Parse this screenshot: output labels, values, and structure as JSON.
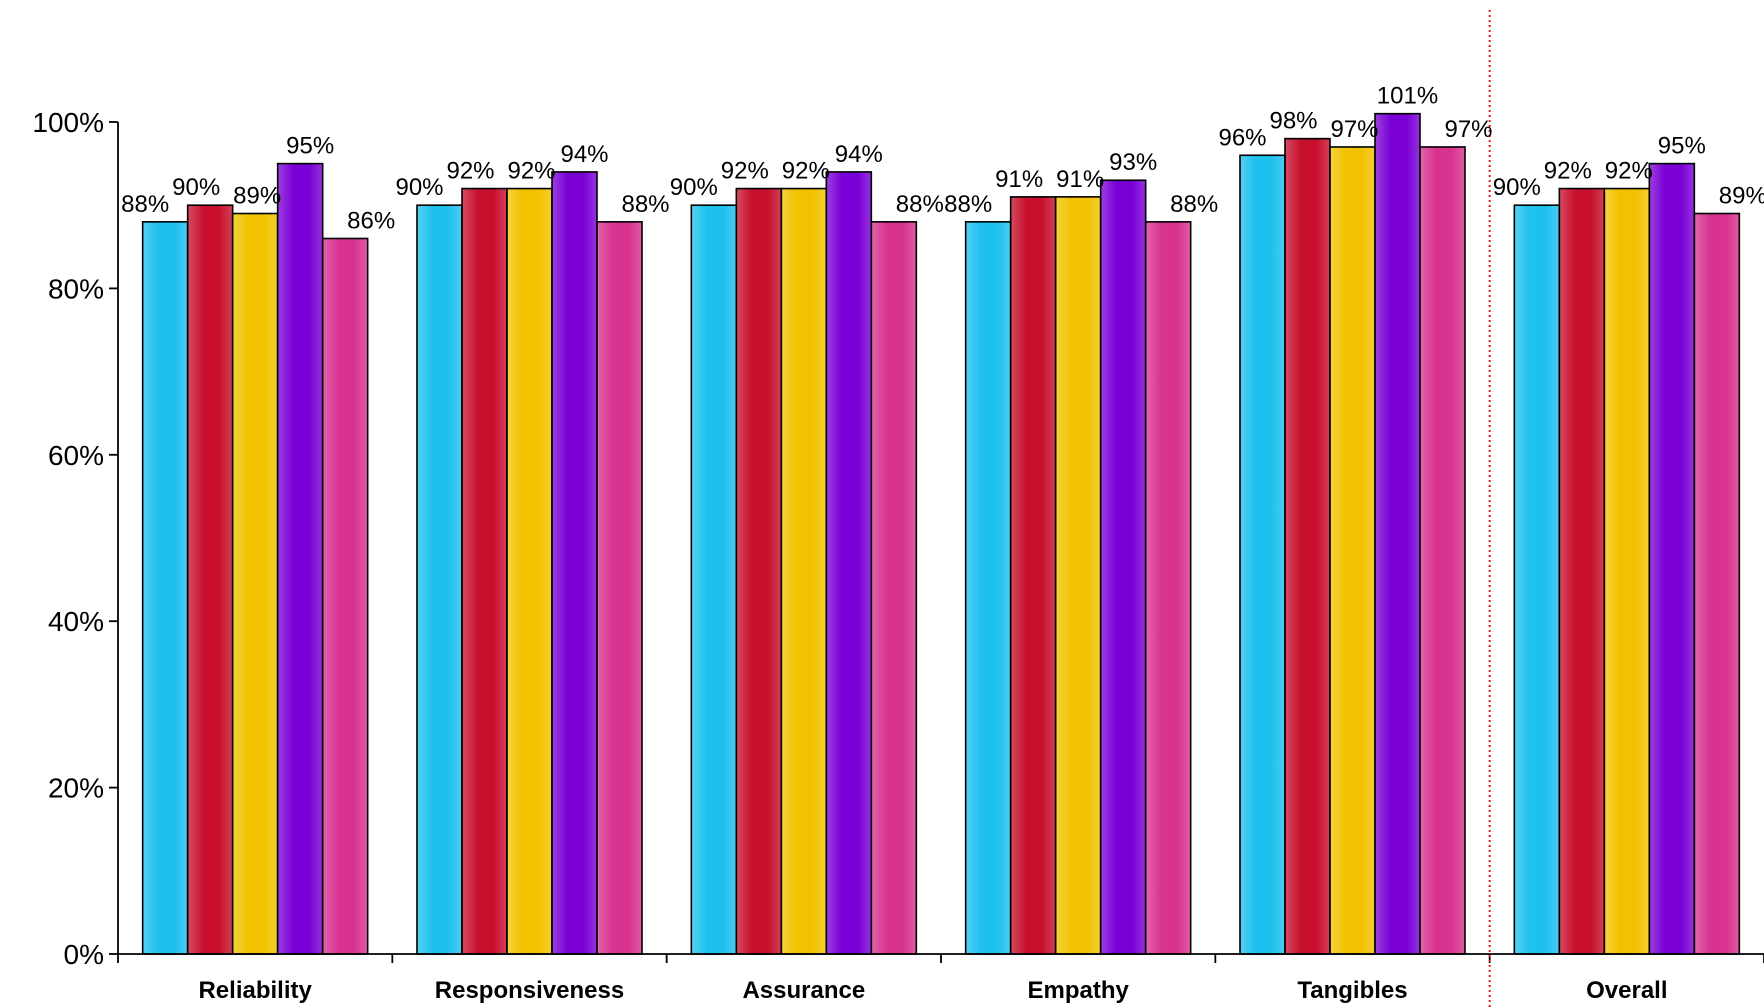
{
  "chart_data": {
    "type": "bar",
    "title": "",
    "xlabel": "",
    "ylabel": "",
    "ylim": [
      0,
      1.0
    ],
    "y_ticks": [
      "0%",
      "20%",
      "40%",
      "60%",
      "80%",
      "100%"
    ],
    "y_tick_values": [
      0,
      0.2,
      0.4,
      0.6,
      0.8,
      1.0
    ],
    "categories": [
      "Reliability",
      "Responsiveness",
      "Assurance",
      "Empathy",
      "Tangibles",
      "Overall"
    ],
    "series": [
      {
        "color": "#1EC0EE",
        "values": [
          0.88,
          0.9,
          0.9,
          0.88,
          0.96,
          0.9
        ],
        "labels": [
          "88%",
          "90%",
          "90%",
          "88%",
          "96%",
          "90%"
        ]
      },
      {
        "color": "#C8102E",
        "values": [
          0.9,
          0.92,
          0.92,
          0.91,
          0.98,
          0.92
        ],
        "labels": [
          "90%",
          "92%",
          "92%",
          "91%",
          "98%",
          "92%"
        ]
      },
      {
        "color": "#F2C200",
        "values": [
          0.89,
          0.92,
          0.92,
          0.91,
          0.97,
          0.92
        ],
        "labels": [
          "89%",
          "92%",
          "92%",
          "91%",
          "97%",
          "92%"
        ]
      },
      {
        "color": "#7A00D6",
        "values": [
          0.95,
          0.94,
          0.94,
          0.93,
          1.01,
          0.95
        ],
        "labels": [
          "95%",
          "94%",
          "94%",
          "93%",
          "101%",
          "95%"
        ]
      },
      {
        "color": "#D8338F",
        "values": [
          0.86,
          0.88,
          0.88,
          0.88,
          0.97,
          0.89
        ],
        "labels": [
          "86%",
          "88%",
          "88%",
          "88%",
          "97%",
          "89%"
        ]
      }
    ],
    "separator_color": "#D62020",
    "grid": false,
    "legend": "none"
  }
}
